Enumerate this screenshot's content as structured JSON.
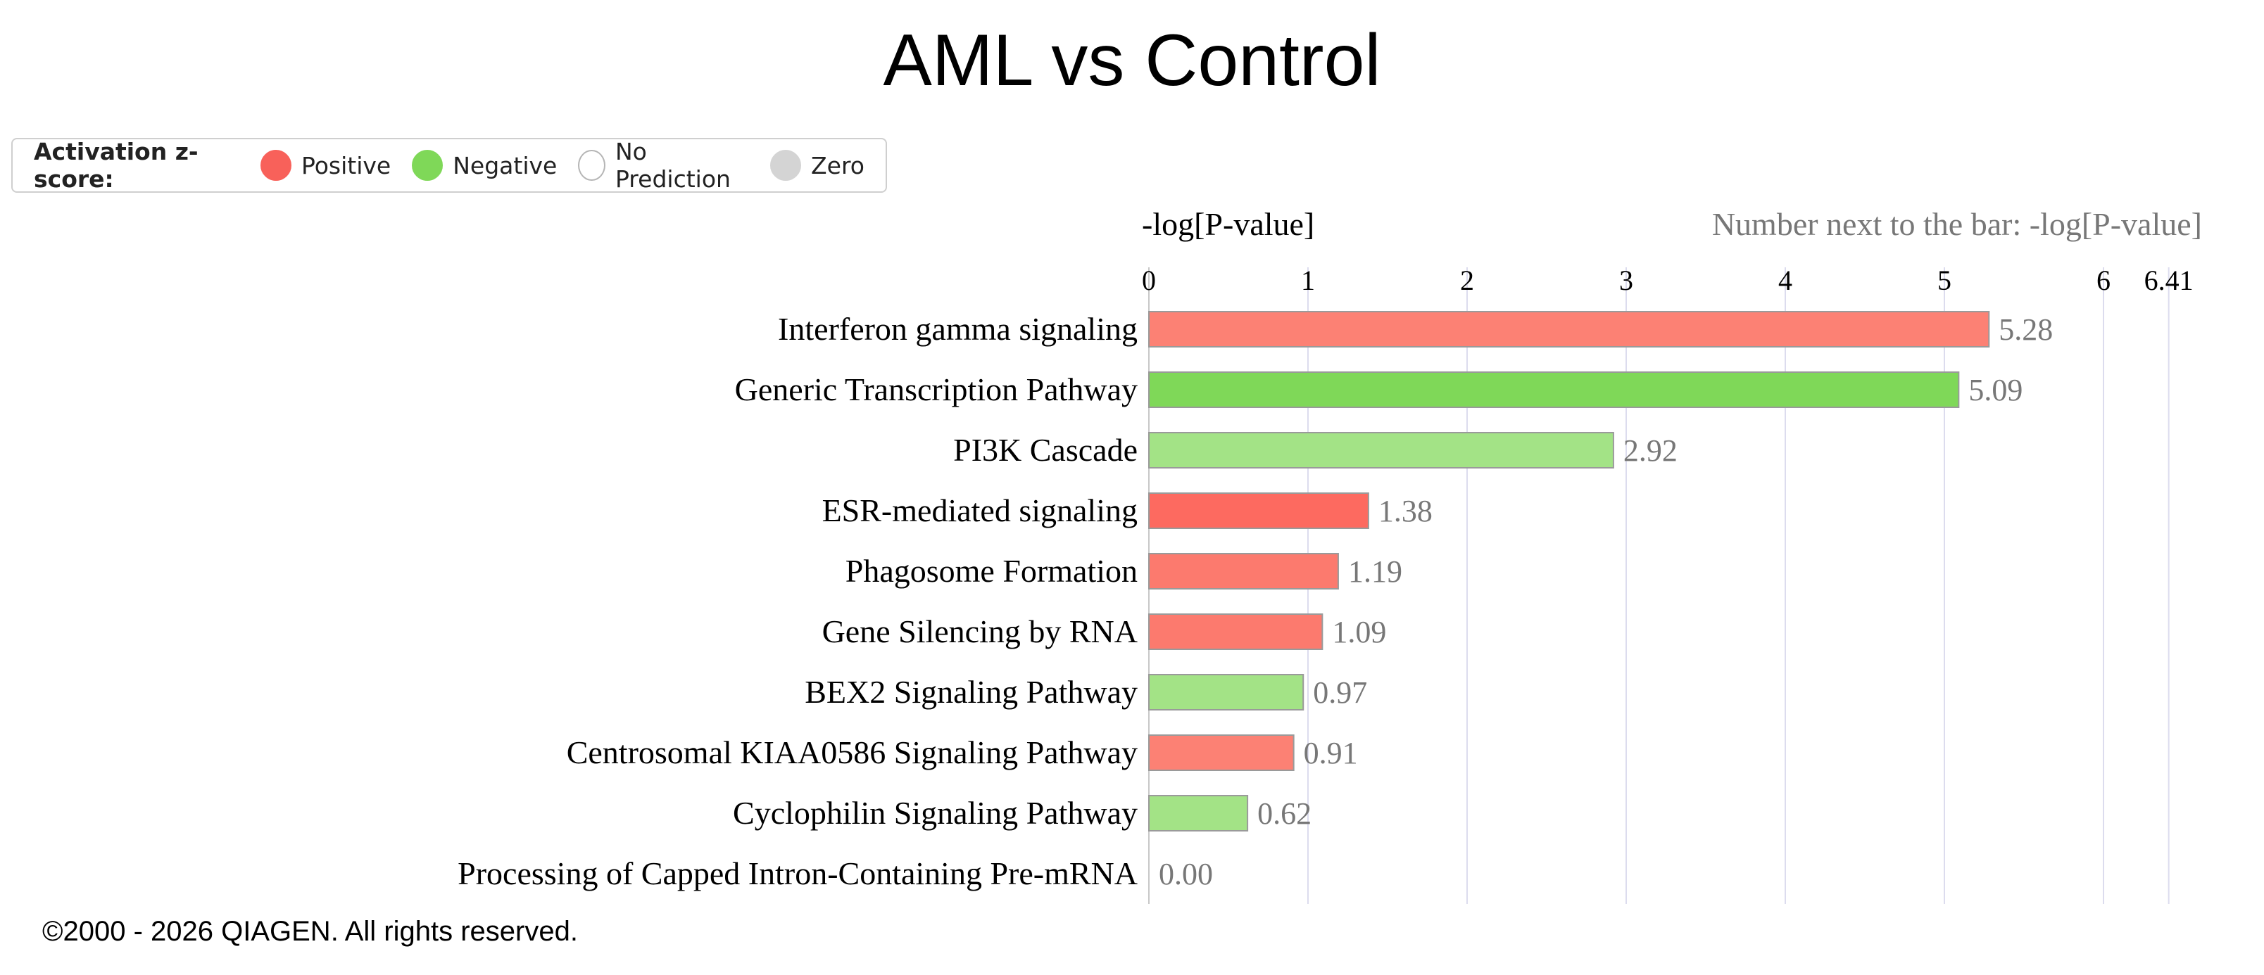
{
  "title": "AML vs Control",
  "legend": {
    "title": "Activation z-score:",
    "items": [
      {
        "label": "Positive",
        "fill": "#f8615a",
        "stroke": "#f8615a"
      },
      {
        "label": "Negative",
        "fill": "#7fd858",
        "stroke": "#7fd858"
      },
      {
        "label": "No Prediction",
        "fill": "#ffffff",
        "stroke": "#b5b5b5"
      },
      {
        "label": "Zero",
        "fill": "#d4d4d4",
        "stroke": "#d4d4d4"
      }
    ]
  },
  "chart_data": {
    "type": "bar",
    "orientation": "horizontal",
    "xlabel": "-log[P-value]",
    "annotation": "Number next to the bar: -log[P-value]",
    "xlim": [
      0,
      6.41
    ],
    "ticks": [
      "0",
      "1",
      "2",
      "3",
      "4",
      "5",
      "6",
      "6.41"
    ],
    "grid": true,
    "categories": [
      "Interferon gamma signaling",
      "Generic Transcription Pathway",
      "PI3K Cascade",
      "ESR-mediated signaling",
      "Phagosome Formation",
      "Gene Silencing by RNA",
      "BEX2 Signaling Pathway",
      "Centrosomal KIAA0586 Signaling Pathway",
      "Cyclophilin Signaling Pathway",
      "Processing of Capped Intron-Containing Pre-mRNA"
    ],
    "values": [
      5.28,
      5.09,
      2.92,
      1.38,
      1.19,
      1.09,
      0.97,
      0.91,
      0.62,
      0.0
    ],
    "value_labels": [
      "5.28",
      "5.09",
      "2.92",
      "1.38",
      "1.19",
      "1.09",
      "0.97",
      "0.91",
      "0.62",
      "0.00"
    ],
    "colors": [
      "#fc8174",
      "#7fd858",
      "#a3e386",
      "#fd6a60",
      "#fc7a6e",
      "#fc7a6e",
      "#a3e386",
      "#fc8174",
      "#a3e386",
      "#ffffff"
    ]
  },
  "footer": "©2000 - 2026 QIAGEN. All rights reserved."
}
